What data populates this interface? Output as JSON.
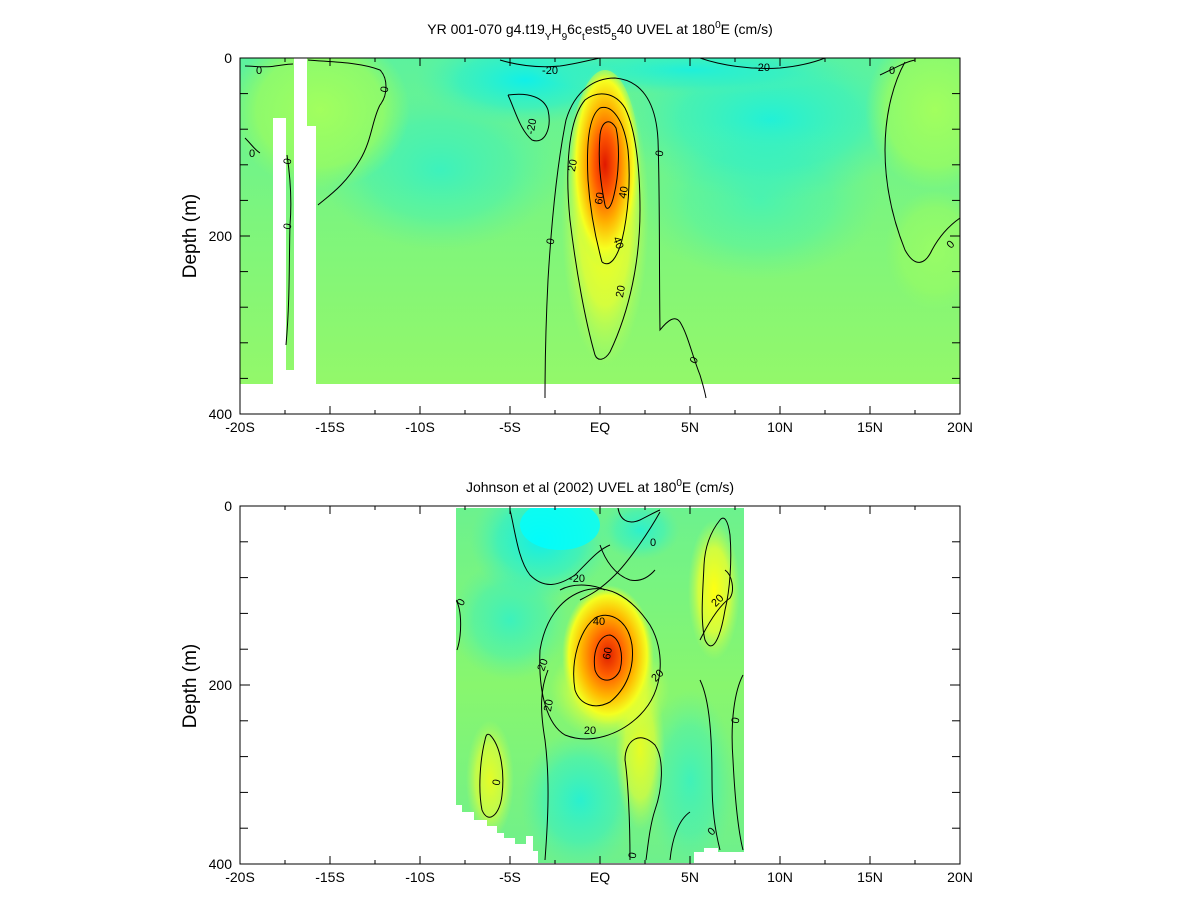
{
  "chart_data": [
    {
      "type": "heatmap",
      "title": "YR 001-070 g4.t19_YH_9 6c_t est5_5 40 UVEL at 180°E (cm/s)",
      "title_parts": {
        "part1": "YR 001-070 g4.t19",
        "sub1": "Y",
        "part2": "H",
        "sub2": "9",
        "part3": "6c",
        "sub3": "t",
        "part4": "est5",
        "sub4": "5",
        "part5": "40 UVEL at 180",
        "sup": "0",
        "part6": "E (cm/s)"
      },
      "xlabel": "",
      "ylabel": "Depth (m)",
      "xlim": [
        -20,
        20
      ],
      "ylim": [
        400,
        0
      ],
      "x_tick_labels": [
        "-20S",
        "-15S",
        "-10S",
        "-5S",
        "EQ",
        "5N",
        "10N",
        "15N",
        "20N"
      ],
      "x_tick_values": [
        -20,
        -15,
        -10,
        -5,
        0,
        5,
        10,
        15,
        20
      ],
      "y_tick_labels": [
        "0",
        "200",
        "400"
      ],
      "y_tick_values": [
        0,
        200,
        400
      ],
      "contour_levels": [
        -20,
        0,
        20,
        40,
        60
      ],
      "colormap": [
        "#00ffff",
        "#33f5c6",
        "#66f58f",
        "#99ff66",
        "#ffff00",
        "#ffaa00",
        "#ff4400",
        "#e01000"
      ],
      "data_extent": {
        "x": [
          -20,
          20
        ],
        "depth": [
          0,
          385
        ]
      },
      "features": [
        {
          "name": "Equatorial Undercurrent core",
          "x": 0.3,
          "depth": 150,
          "max_value": 60
        },
        {
          "name": "Surface westward flow",
          "x": -4,
          "depth": 20,
          "value": -20
        },
        {
          "name": "Surface westward flow",
          "x": 9,
          "depth": 10,
          "value": -20
        }
      ],
      "contour_labels": [
        {
          "text": "0",
          "x": -18.8,
          "depth": 14
        },
        {
          "text": "-20",
          "x": -3.0,
          "depth": 14
        },
        {
          "text": "-20",
          "x": 9.0,
          "depth": 10
        },
        {
          "text": "0",
          "x": -10.8,
          "depth": 35
        },
        {
          "text": "-20",
          "x": -3.6,
          "depth": 75
        },
        {
          "text": "0",
          "x": 16.2,
          "depth": 15
        },
        {
          "text": "0",
          "x": -18.5,
          "depth": 110
        },
        {
          "text": "0",
          "x": -17.2,
          "depth": 115
        },
        {
          "text": "0",
          "x": -17.2,
          "depth": 188
        },
        {
          "text": "20",
          "x": -1.5,
          "depth": 120
        },
        {
          "text": "40",
          "x": 1.2,
          "depth": 150
        },
        {
          "text": "60",
          "x": 0.0,
          "depth": 155
        },
        {
          "text": "40",
          "x": 0.6,
          "depth": 210
        },
        {
          "text": "0",
          "x": -2.5,
          "depth": 205
        },
        {
          "text": "0",
          "x": 3.2,
          "depth": 108
        },
        {
          "text": "20",
          "x": 1.1,
          "depth": 260
        },
        {
          "text": "0",
          "x": 5.2,
          "depth": 340
        },
        {
          "text": "0",
          "x": 19.2,
          "depth": 210
        }
      ]
    },
    {
      "type": "heatmap",
      "title": "Johnson et al (2002) UVEL at 180°E (cm/s)",
      "title_parts": {
        "part1": "Johnson et al (2002) UVEL at 180",
        "sup": "0",
        "part2": "E (cm/s)"
      },
      "xlabel": "",
      "ylabel": "Depth (m)",
      "xlim": [
        -20,
        20
      ],
      "ylim": [
        400,
        0
      ],
      "x_tick_labels": [
        "-20S",
        "-15S",
        "-10S",
        "-5S",
        "EQ",
        "5N",
        "10N",
        "15N",
        "20N"
      ],
      "x_tick_values": [
        -20,
        -15,
        -10,
        -5,
        0,
        5,
        10,
        15,
        20
      ],
      "y_tick_labels": [
        "0",
        "200",
        "400"
      ],
      "y_tick_values": [
        0,
        200,
        400
      ],
      "contour_levels": [
        -20,
        0,
        20,
        40,
        60
      ],
      "colormap": [
        "#00ffff",
        "#33f5c6",
        "#66f58f",
        "#99ff66",
        "#ffff00",
        "#ffaa00",
        "#ff4400",
        "#e01000"
      ],
      "data_extent": {
        "x": [
          -8,
          8
        ],
        "depth": [
          0,
          385
        ]
      },
      "features": [
        {
          "name": "Equatorial Undercurrent core",
          "x": 0.5,
          "depth": 165,
          "max_value": 60
        },
        {
          "name": "Surface westward flow",
          "x": -3.5,
          "depth": 40,
          "value": -20
        }
      ],
      "contour_labels": [
        {
          "text": "0",
          "x": -7.6,
          "depth": 105
        },
        {
          "text": "-20",
          "x": -1.3,
          "depth": 82
        },
        {
          "text": "0",
          "x": 2.9,
          "depth": 42
        },
        {
          "text": "40",
          "x": -0.1,
          "depth": 130
        },
        {
          "text": "60",
          "x": 0.6,
          "depth": 165
        },
        {
          "text": "20",
          "x": -3.0,
          "depth": 180
        },
        {
          "text": "20",
          "x": -2.7,
          "depth": 222
        },
        {
          "text": "20",
          "x": -0.6,
          "depth": 250
        },
        {
          "text": "20",
          "x": 3.2,
          "depth": 190
        },
        {
          "text": "20",
          "x": 6.7,
          "depth": 105
        },
        {
          "text": "0",
          "x": 7.7,
          "depth": 240
        },
        {
          "text": "0",
          "x": -5.4,
          "depth": 305
        },
        {
          "text": "0",
          "x": 4.3,
          "depth": 358
        },
        {
          "text": "0",
          "x": 2.0,
          "depth": 395
        }
      ]
    }
  ]
}
